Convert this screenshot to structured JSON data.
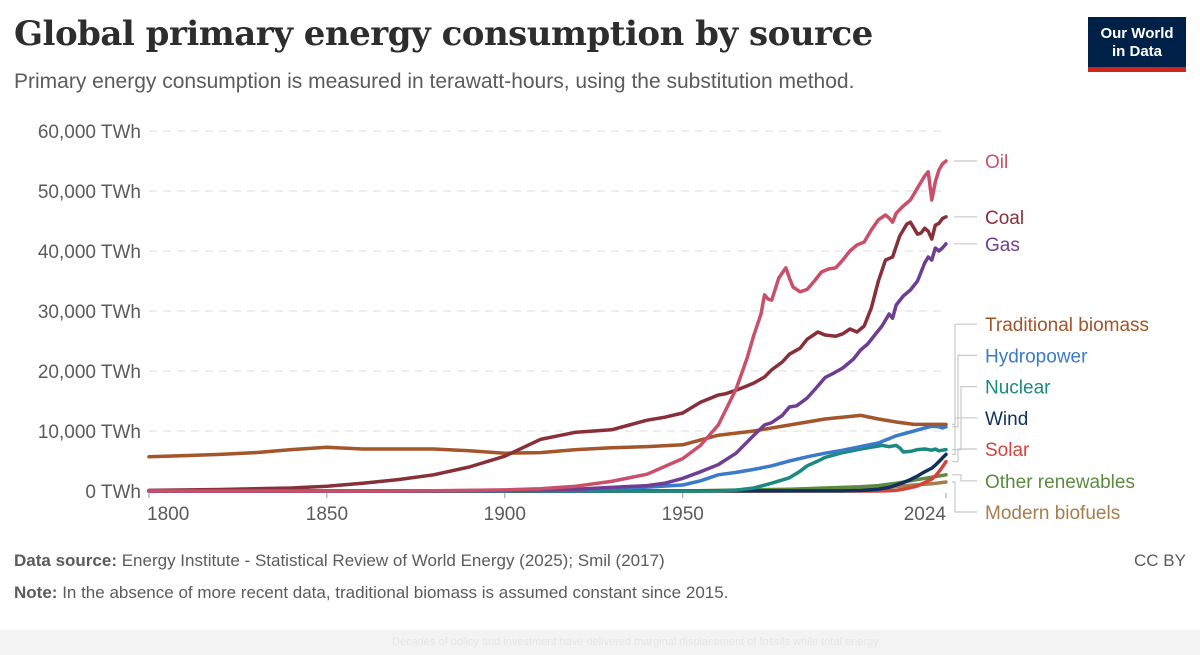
{
  "header": {
    "title": "Global primary energy consumption by source",
    "subtitle": "Primary energy consumption is measured in terawatt-hours, using the substitution method.",
    "logo_line1": "Our World",
    "logo_line2": "in Data"
  },
  "footer": {
    "source_label": "Data source:",
    "source_text": "Energy Institute - Statistical Review of World Energy (2025); Smil (2017)",
    "note_label": "Note:",
    "note_text": "In the absence of more recent data, traditional biomass is assumed constant since 2015.",
    "license": "CC BY",
    "caption": "Decades of policy and investment have delivered marginal displacement of fossils while total energy"
  },
  "chart_data": {
    "type": "line",
    "title": "Global primary energy consumption by source",
    "subtitle": "Primary energy consumption is measured in terawatt-hours, using the substitution method.",
    "xlabel": "",
    "ylabel": "",
    "xlim": [
      1800,
      2024
    ],
    "ylim": [
      0,
      60000
    ],
    "grid": true,
    "legend": "right-inline",
    "x_ticks": [
      1800,
      1850,
      1900,
      1950,
      2024
    ],
    "x_tick_labels": [
      "1800",
      "1850",
      "1900",
      "1950",
      "2024"
    ],
    "y_ticks": [
      0,
      10000,
      20000,
      30000,
      40000,
      50000,
      60000
    ],
    "y_tick_labels": [
      "0 TWh",
      "10,000 TWh",
      "20,000 TWh",
      "30,000 TWh",
      "40,000 TWh",
      "50,000 TWh",
      "60,000 TWh"
    ],
    "series": [
      {
        "name": "Oil",
        "color": "#ca4f6a",
        "label_y": 55000,
        "points": [
          [
            1800,
            0
          ],
          [
            1860,
            0
          ],
          [
            1870,
            10
          ],
          [
            1880,
            50
          ],
          [
            1890,
            100
          ],
          [
            1900,
            180
          ],
          [
            1910,
            380
          ],
          [
            1920,
            800
          ],
          [
            1930,
            1600
          ],
          [
            1940,
            2800
          ],
          [
            1950,
            5400
          ],
          [
            1955,
            7600
          ],
          [
            1960,
            11000
          ],
          [
            1965,
            17000
          ],
          [
            1968,
            22000
          ],
          [
            1970,
            26000
          ],
          [
            1972,
            29500
          ],
          [
            1973,
            32700
          ],
          [
            1974,
            32000
          ],
          [
            1975,
            31800
          ],
          [
            1977,
            35500
          ],
          [
            1979,
            37200
          ],
          [
            1980,
            35500
          ],
          [
            1981,
            34000
          ],
          [
            1983,
            33200
          ],
          [
            1985,
            33600
          ],
          [
            1987,
            35000
          ],
          [
            1989,
            36500
          ],
          [
            1991,
            37000
          ],
          [
            1993,
            37200
          ],
          [
            1995,
            38500
          ],
          [
            1997,
            40000
          ],
          [
            1999,
            41000
          ],
          [
            2001,
            41500
          ],
          [
            2003,
            43500
          ],
          [
            2005,
            45200
          ],
          [
            2007,
            46000
          ],
          [
            2008,
            45500
          ],
          [
            2009,
            44800
          ],
          [
            2010,
            46300
          ],
          [
            2012,
            47500
          ],
          [
            2014,
            48500
          ],
          [
            2016,
            50500
          ],
          [
            2018,
            52500
          ],
          [
            2019,
            53200
          ],
          [
            2020,
            48500
          ],
          [
            2021,
            51500
          ],
          [
            2022,
            53500
          ],
          [
            2023,
            54500
          ],
          [
            2024,
            55000
          ]
        ]
      },
      {
        "name": "Coal",
        "color": "#883039",
        "label_y": 45700,
        "points": [
          [
            1800,
            100
          ],
          [
            1820,
            250
          ],
          [
            1840,
            500
          ],
          [
            1850,
            800
          ],
          [
            1860,
            1300
          ],
          [
            1870,
            1900
          ],
          [
            1880,
            2700
          ],
          [
            1890,
            4000
          ],
          [
            1900,
            5800
          ],
          [
            1905,
            7200
          ],
          [
            1910,
            8600
          ],
          [
            1915,
            9200
          ],
          [
            1920,
            9800
          ],
          [
            1925,
            10000
          ],
          [
            1930,
            10200
          ],
          [
            1935,
            11000
          ],
          [
            1940,
            11800
          ],
          [
            1945,
            12300
          ],
          [
            1950,
            13000
          ],
          [
            1955,
            14800
          ],
          [
            1960,
            16000
          ],
          [
            1962,
            16200
          ],
          [
            1965,
            16800
          ],
          [
            1968,
            17500
          ],
          [
            1970,
            18000
          ],
          [
            1973,
            19000
          ],
          [
            1975,
            20200
          ],
          [
            1978,
            21500
          ],
          [
            1980,
            22800
          ],
          [
            1983,
            23800
          ],
          [
            1985,
            25300
          ],
          [
            1988,
            26500
          ],
          [
            1990,
            26000
          ],
          [
            1993,
            25800
          ],
          [
            1995,
            26200
          ],
          [
            1997,
            27000
          ],
          [
            1999,
            26500
          ],
          [
            2001,
            27500
          ],
          [
            2003,
            30500
          ],
          [
            2005,
            35000
          ],
          [
            2007,
            38500
          ],
          [
            2009,
            39000
          ],
          [
            2011,
            42500
          ],
          [
            2013,
            44500
          ],
          [
            2014,
            44800
          ],
          [
            2015,
            43800
          ],
          [
            2016,
            42800
          ],
          [
            2017,
            43000
          ],
          [
            2018,
            43800
          ],
          [
            2019,
            43300
          ],
          [
            2020,
            42000
          ],
          [
            2021,
            44300
          ],
          [
            2022,
            44600
          ],
          [
            2023,
            45400
          ],
          [
            2024,
            45700
          ]
        ]
      },
      {
        "name": "Gas",
        "color": "#6d3e91",
        "label_y": 41200,
        "points": [
          [
            1800,
            0
          ],
          [
            1880,
            10
          ],
          [
            1900,
            100
          ],
          [
            1910,
            200
          ],
          [
            1920,
            300
          ],
          [
            1930,
            600
          ],
          [
            1940,
            900
          ],
          [
            1945,
            1300
          ],
          [
            1950,
            2100
          ],
          [
            1955,
            3200
          ],
          [
            1960,
            4400
          ],
          [
            1965,
            6300
          ],
          [
            1970,
            9300
          ],
          [
            1973,
            11000
          ],
          [
            1975,
            11400
          ],
          [
            1978,
            12600
          ],
          [
            1980,
            14000
          ],
          [
            1982,
            14200
          ],
          [
            1985,
            15500
          ],
          [
            1988,
            17500
          ],
          [
            1990,
            18900
          ],
          [
            1992,
            19500
          ],
          [
            1995,
            20500
          ],
          [
            1998,
            22000
          ],
          [
            2000,
            23500
          ],
          [
            2002,
            24500
          ],
          [
            2004,
            26000
          ],
          [
            2006,
            27500
          ],
          [
            2008,
            29500
          ],
          [
            2009,
            28800
          ],
          [
            2010,
            31000
          ],
          [
            2012,
            32500
          ],
          [
            2014,
            33500
          ],
          [
            2016,
            35000
          ],
          [
            2018,
            38000
          ],
          [
            2019,
            39000
          ],
          [
            2020,
            38500
          ],
          [
            2021,
            40500
          ],
          [
            2022,
            40000
          ],
          [
            2023,
            40500
          ],
          [
            2024,
            41200
          ]
        ]
      },
      {
        "name": "Traditional biomass",
        "color": "#a2562a",
        "label_y": 27800,
        "points": [
          [
            1800,
            5700
          ],
          [
            1810,
            5900
          ],
          [
            1820,
            6100
          ],
          [
            1830,
            6400
          ],
          [
            1840,
            6900
          ],
          [
            1850,
            7300
          ],
          [
            1860,
            7000
          ],
          [
            1870,
            7000
          ],
          [
            1880,
            7000
          ],
          [
            1890,
            6700
          ],
          [
            1900,
            6300
          ],
          [
            1910,
            6400
          ],
          [
            1920,
            6900
          ],
          [
            1930,
            7200
          ],
          [
            1940,
            7400
          ],
          [
            1950,
            7700
          ],
          [
            1960,
            9300
          ],
          [
            1970,
            10000
          ],
          [
            1980,
            11000
          ],
          [
            1990,
            12000
          ],
          [
            2000,
            12600
          ],
          [
            2005,
            12000
          ],
          [
            2010,
            11500
          ],
          [
            2015,
            11100
          ],
          [
            2024,
            11100
          ]
        ]
      },
      {
        "name": "Hydropower",
        "color": "#3a7ac9",
        "label_y": 22600,
        "points": [
          [
            1800,
            0
          ],
          [
            1900,
            50
          ],
          [
            1910,
            150
          ],
          [
            1920,
            300
          ],
          [
            1930,
            450
          ],
          [
            1940,
            650
          ],
          [
            1950,
            1000
          ],
          [
            1955,
            1700
          ],
          [
            1960,
            2700
          ],
          [
            1965,
            3100
          ],
          [
            1970,
            3600
          ],
          [
            1975,
            4200
          ],
          [
            1980,
            5000
          ],
          [
            1985,
            5700
          ],
          [
            1990,
            6300
          ],
          [
            1995,
            6800
          ],
          [
            2000,
            7400
          ],
          [
            2005,
            8000
          ],
          [
            2010,
            9200
          ],
          [
            2015,
            10000
          ],
          [
            2018,
            10500
          ],
          [
            2020,
            10800
          ],
          [
            2022,
            10700
          ],
          [
            2023,
            10500
          ],
          [
            2024,
            10700
          ]
        ]
      },
      {
        "name": "Nuclear",
        "color": "#1a8a80",
        "label_y": 17400,
        "points": [
          [
            1800,
            0
          ],
          [
            1955,
            0
          ],
          [
            1960,
            20
          ],
          [
            1965,
            150
          ],
          [
            1970,
            500
          ],
          [
            1975,
            1300
          ],
          [
            1980,
            2200
          ],
          [
            1983,
            3300
          ],
          [
            1985,
            4200
          ],
          [
            1988,
            5000
          ],
          [
            1990,
            5600
          ],
          [
            1995,
            6400
          ],
          [
            2000,
            7000
          ],
          [
            2005,
            7500
          ],
          [
            2006,
            7600
          ],
          [
            2008,
            7400
          ],
          [
            2010,
            7600
          ],
          [
            2011,
            7200
          ],
          [
            2012,
            6500
          ],
          [
            2014,
            6600
          ],
          [
            2016,
            6900
          ],
          [
            2018,
            7000
          ],
          [
            2020,
            6800
          ],
          [
            2021,
            7000
          ],
          [
            2022,
            6700
          ],
          [
            2023,
            6800
          ],
          [
            2024,
            6900
          ]
        ]
      },
      {
        "name": "Wind",
        "color": "#10305e",
        "label_y": 12200,
        "points": [
          [
            1800,
            0
          ],
          [
            1990,
            10
          ],
          [
            1995,
            20
          ],
          [
            2000,
            80
          ],
          [
            2005,
            300
          ],
          [
            2008,
            600
          ],
          [
            2010,
            1000
          ],
          [
            2012,
            1400
          ],
          [
            2014,
            1900
          ],
          [
            2016,
            2500
          ],
          [
            2018,
            3200
          ],
          [
            2019,
            3500
          ],
          [
            2020,
            3800
          ],
          [
            2021,
            4300
          ],
          [
            2022,
            4900
          ],
          [
            2023,
            5500
          ],
          [
            2024,
            6100
          ]
        ]
      },
      {
        "name": "Solar",
        "color": "#d4443a",
        "label_y": 7000,
        "points": [
          [
            1800,
            0
          ],
          [
            2005,
            0
          ],
          [
            2008,
            30
          ],
          [
            2010,
            100
          ],
          [
            2012,
            300
          ],
          [
            2014,
            550
          ],
          [
            2016,
            850
          ],
          [
            2018,
            1400
          ],
          [
            2019,
            1700
          ],
          [
            2020,
            2000
          ],
          [
            2021,
            2500
          ],
          [
            2022,
            3200
          ],
          [
            2023,
            4000
          ],
          [
            2024,
            4900
          ]
        ]
      },
      {
        "name": "Other renewables",
        "color": "#5c8a3f",
        "label_y": 1700,
        "points": [
          [
            1800,
            0
          ],
          [
            1950,
            0
          ],
          [
            1960,
            100
          ],
          [
            1970,
            200
          ],
          [
            1980,
            300
          ],
          [
            1990,
            500
          ],
          [
            2000,
            700
          ],
          [
            2005,
            900
          ],
          [
            2010,
            1300
          ],
          [
            2015,
            1800
          ],
          [
            2020,
            2300
          ],
          [
            2024,
            2700
          ]
        ]
      },
      {
        "name": "Modern biofuels",
        "color": "#a57e4b",
        "label_y": -3500,
        "points": [
          [
            1800,
            0
          ],
          [
            1975,
            0
          ],
          [
            1980,
            50
          ],
          [
            1990,
            100
          ],
          [
            2000,
            150
          ],
          [
            2005,
            350
          ],
          [
            2010,
            750
          ],
          [
            2015,
            1000
          ],
          [
            2020,
            1200
          ],
          [
            2024,
            1500
          ]
        ]
      }
    ]
  }
}
